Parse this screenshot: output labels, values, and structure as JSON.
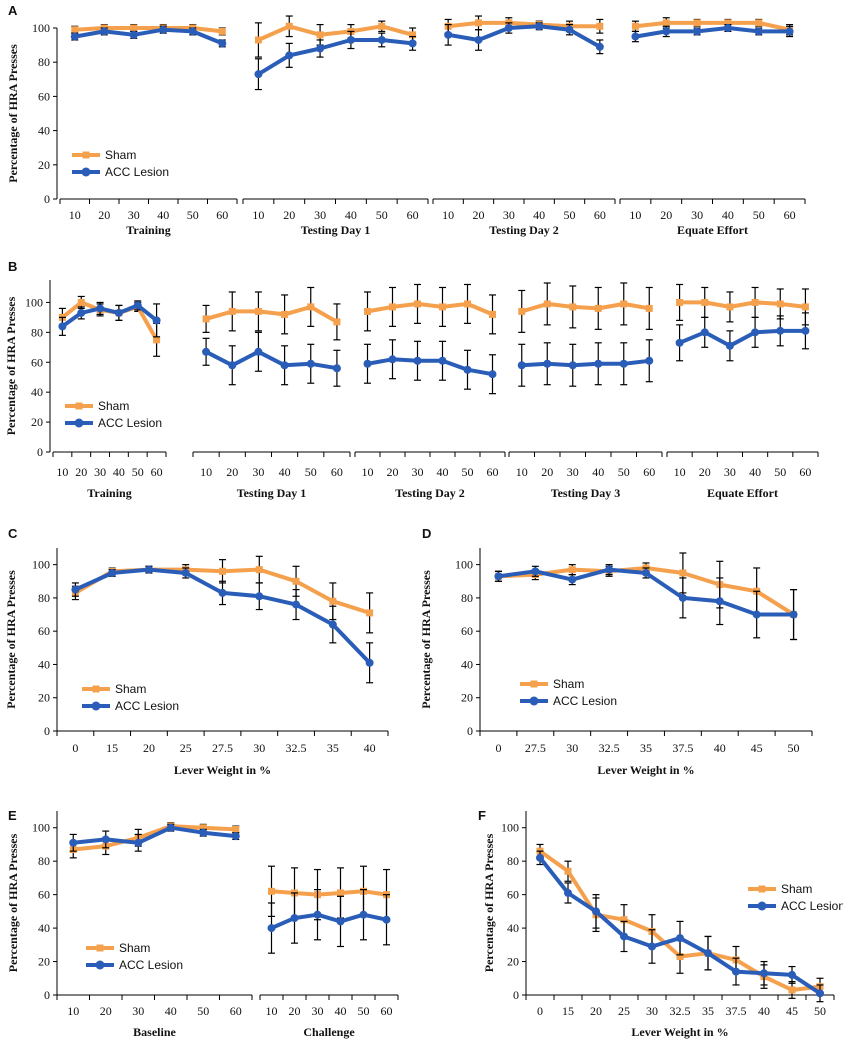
{
  "colors": {
    "sham": "#F5A04C",
    "acc": "#2A5DB7",
    "axis": "#000000",
    "error": "#000000"
  },
  "chart_data": [
    {
      "panel": "A",
      "type": "line",
      "ylabel": "Percentage of HRA Presses",
      "ylim": [
        0,
        100
      ],
      "yticks": [
        "0",
        "20",
        "40",
        "60",
        "80",
        "100"
      ],
      "legend": {
        "position": "lower-left",
        "labels": [
          "Sham",
          "ACC Lesion"
        ]
      },
      "groups": [
        {
          "label": "Training",
          "ticks": [
            "10",
            "20",
            "30",
            "40",
            "50",
            "60"
          ],
          "series": [
            {
              "name": "Sham",
              "values": [
                99,
                100,
                100,
                100,
                100,
                98
              ],
              "errors": [
                2,
                2,
                2,
                2,
                2,
                2
              ]
            },
            {
              "name": "ACC Lesion",
              "values": [
                95,
                98,
                96,
                99,
                98,
                91
              ],
              "errors": [
                2,
                2,
                2,
                2,
                2,
                2
              ]
            }
          ]
        },
        {
          "label": "Testing Day 1",
          "ticks": [
            "10",
            "20",
            "30",
            "40",
            "50",
            "60"
          ],
          "series": [
            {
              "name": "Sham",
              "values": [
                93,
                101,
                96,
                98,
                101,
                96
              ],
              "errors": [
                10,
                6,
                6,
                4,
                3,
                4
              ]
            },
            {
              "name": "ACC Lesion",
              "values": [
                73,
                84,
                88,
                93,
                93,
                91
              ],
              "errors": [
                9,
                7,
                5,
                5,
                4,
                4
              ]
            }
          ]
        },
        {
          "label": "Testing Day 2",
          "ticks": [
            "10",
            "20",
            "30",
            "40",
            "50",
            "60"
          ],
          "series": [
            {
              "name": "Sham",
              "values": [
                101,
                103,
                103,
                102,
                101,
                101
              ],
              "errors": [
                4,
                4,
                3,
                2,
                3,
                4
              ]
            },
            {
              "name": "ACC Lesion",
              "values": [
                96,
                93,
                100,
                101,
                99,
                89
              ],
              "errors": [
                6,
                6,
                3,
                2,
                3,
                4
              ]
            }
          ]
        },
        {
          "label": "Equate Effort",
          "ticks": [
            "10",
            "20",
            "30",
            "40",
            "50",
            "60"
          ],
          "series": [
            {
              "name": "Sham",
              "values": [
                101,
                103,
                103,
                103,
                103,
                99
              ],
              "errors": [
                3,
                3,
                2,
                2,
                2,
                3
              ]
            },
            {
              "name": "ACC Lesion",
              "values": [
                95,
                98,
                98,
                100,
                98,
                98
              ],
              "errors": [
                3,
                3,
                2,
                2,
                2,
                3
              ]
            }
          ]
        }
      ]
    },
    {
      "panel": "B",
      "type": "line",
      "ylabel": "Percentage of HRA Presses",
      "ylim": [
        0,
        115
      ],
      "yticks": [
        "0",
        "20",
        "40",
        "60",
        "80",
        "100"
      ],
      "legend": {
        "position": "lower-left",
        "labels": [
          "Sham",
          "ACC Lesion"
        ]
      },
      "groups": [
        {
          "label": "Training",
          "ticks": [
            "10",
            "20",
            "30",
            "40",
            "50",
            "60"
          ],
          "series": [
            {
              "name": "Sham",
              "values": [
                90,
                100,
                95,
                93,
                97,
                75
              ],
              "errors": [
                6,
                4,
                4,
                5,
                3,
                11
              ]
            },
            {
              "name": "ACC Lesion",
              "values": [
                84,
                93,
                96,
                93,
                98,
                88
              ],
              "errors": [
                6,
                4,
                4,
                5,
                3,
                11
              ]
            }
          ]
        },
        {
          "label": "Testing Day 1",
          "ticks": [
            "10",
            "20",
            "30",
            "40",
            "50",
            "60"
          ],
          "series": [
            {
              "name": "Sham",
              "values": [
                89,
                94,
                94,
                92,
                97,
                87
              ],
              "errors": [
                9,
                13,
                13,
                13,
                13,
                12
              ]
            },
            {
              "name": "ACC Lesion",
              "values": [
                67,
                58,
                67,
                58,
                59,
                56
              ],
              "errors": [
                9,
                13,
                13,
                13,
                13,
                12
              ]
            }
          ]
        },
        {
          "label": "Testing Day 2",
          "ticks": [
            "10",
            "20",
            "30",
            "40",
            "50",
            "60"
          ],
          "series": [
            {
              "name": "Sham",
              "values": [
                94,
                97,
                99,
                97,
                99,
                92
              ],
              "errors": [
                13,
                13,
                13,
                13,
                13,
                13
              ]
            },
            {
              "name": "ACC Lesion",
              "values": [
                59,
                62,
                61,
                61,
                55,
                52
              ],
              "errors": [
                13,
                13,
                13,
                13,
                13,
                13
              ]
            }
          ]
        },
        {
          "label": "Testing Day 3",
          "ticks": [
            "10",
            "20",
            "30",
            "40",
            "50",
            "60"
          ],
          "series": [
            {
              "name": "Sham",
              "values": [
                94,
                99,
                97,
                96,
                99,
                96
              ],
              "errors": [
                14,
                14,
                14,
                14,
                14,
                14
              ]
            },
            {
              "name": "ACC Lesion",
              "values": [
                58,
                59,
                58,
                59,
                59,
                61
              ],
              "errors": [
                14,
                14,
                14,
                14,
                14,
                14
              ]
            }
          ]
        },
        {
          "label": "Equate Effort",
          "ticks": [
            "10",
            "20",
            "30",
            "40",
            "50",
            "60"
          ],
          "series": [
            {
              "name": "Sham",
              "values": [
                100,
                100,
                97,
                100,
                99,
                97
              ],
              "errors": [
                12,
                10,
                10,
                10,
                10,
                12
              ]
            },
            {
              "name": "ACC Lesion",
              "values": [
                73,
                80,
                71,
                80,
                81,
                81
              ],
              "errors": [
                12,
                10,
                10,
                10,
                10,
                12
              ]
            }
          ]
        }
      ]
    },
    {
      "panel": "C",
      "type": "line",
      "ylabel": "Percentage of HRA Presses",
      "xlabel": "Lever Weight in %",
      "ylim": [
        0,
        110
      ],
      "yticks": [
        "0",
        "20",
        "40",
        "60",
        "80",
        "100"
      ],
      "legend": {
        "position": "lower-left",
        "labels": [
          "Sham",
          "ACC Lesion"
        ]
      },
      "categories": [
        "0",
        "15",
        "20",
        "25",
        "27.5",
        "30",
        "32.5",
        "35",
        "40"
      ],
      "series": [
        {
          "name": "Sham",
          "values": [
            83,
            96,
            97,
            97,
            96,
            97,
            90,
            78,
            71
          ],
          "errors": [
            4,
            2,
            2,
            3,
            7,
            8,
            9,
            11,
            12
          ]
        },
        {
          "name": "ACC Lesion",
          "values": [
            85,
            95,
            97,
            95,
            83,
            81,
            76,
            64,
            41
          ],
          "errors": [
            4,
            2,
            2,
            3,
            7,
            8,
            9,
            11,
            12
          ]
        }
      ]
    },
    {
      "panel": "D",
      "type": "line",
      "ylabel": "Percentage of HRA Presses",
      "xlabel": "Lever Weight in %",
      "ylim": [
        0,
        110
      ],
      "yticks": [
        "0",
        "20",
        "40",
        "60",
        "80",
        "100"
      ],
      "legend": {
        "position": "lower-left",
        "labels": [
          "Sham",
          "ACC Lesion"
        ]
      },
      "categories": [
        "0",
        "27.5",
        "30",
        "32.5",
        "35",
        "37.5",
        "40",
        "45",
        "50"
      ],
      "series": [
        {
          "name": "Sham",
          "values": [
            93,
            94,
            97,
            96,
            98,
            95,
            88,
            84,
            70
          ],
          "errors": [
            3,
            3,
            3,
            3,
            3,
            12,
            14,
            14,
            15
          ]
        },
        {
          "name": "ACC Lesion",
          "values": [
            93,
            96,
            91,
            97,
            95,
            80,
            78,
            70,
            70
          ],
          "errors": [
            3,
            3,
            3,
            3,
            3,
            12,
            14,
            14,
            15
          ]
        }
      ]
    },
    {
      "panel": "E",
      "type": "line",
      "ylabel": "Percentage of HRA Presses",
      "ylim": [
        0,
        110
      ],
      "yticks": [
        "0",
        "20",
        "40",
        "60",
        "80",
        "100"
      ],
      "legend": {
        "position": "lower-left",
        "labels": [
          "Sham",
          "ACC Lesion"
        ]
      },
      "groups": [
        {
          "label": "Baseline",
          "ticks": [
            "10",
            "20",
            "30",
            "40",
            "50",
            "60"
          ],
          "series": [
            {
              "name": "Sham",
              "values": [
                87,
                89,
                94,
                101,
                100,
                99
              ],
              "errors": [
                5,
                5,
                5,
                2,
                2,
                2
              ]
            },
            {
              "name": "ACC Lesion",
              "values": [
                91,
                93,
                91,
                100,
                97,
                95
              ],
              "errors": [
                5,
                5,
                5,
                2,
                2,
                2
              ]
            }
          ]
        },
        {
          "label": "Challenge",
          "ticks": [
            "10",
            "20",
            "30",
            "40",
            "50",
            "60"
          ],
          "series": [
            {
              "name": "Sham",
              "values": [
                62,
                61,
                60,
                61,
                62,
                60
              ],
              "errors": [
                15,
                15,
                15,
                15,
                15,
                15
              ]
            },
            {
              "name": "ACC Lesion",
              "values": [
                40,
                46,
                48,
                44,
                48,
                45
              ],
              "errors": [
                15,
                15,
                15,
                15,
                15,
                15
              ]
            }
          ]
        }
      ]
    },
    {
      "panel": "F",
      "type": "line",
      "ylabel": "Percentage of HRA Presses",
      "xlabel": "Lever Weight in %",
      "ylim": [
        0,
        110
      ],
      "yticks": [
        "0",
        "20",
        "40",
        "60",
        "80",
        "100"
      ],
      "legend": {
        "position": "right",
        "labels": [
          "Sham",
          "ACC Lesion"
        ]
      },
      "categories": [
        "0",
        "15",
        "20",
        "25",
        "30",
        "32.5",
        "35",
        "37.5",
        "40",
        "45",
        "50"
      ],
      "series": [
        {
          "name": "Sham",
          "values": [
            86,
            74,
            48,
            45,
            38,
            23,
            25,
            21,
            11,
            3,
            5
          ],
          "errors": [
            4,
            6,
            10,
            9,
            10,
            10,
            10,
            8,
            7,
            5,
            5
          ]
        },
        {
          "name": "ACC Lesion",
          "values": [
            82,
            61,
            50,
            35,
            29,
            34,
            25,
            14,
            13,
            12,
            1
          ],
          "errors": [
            4,
            6,
            10,
            9,
            10,
            10,
            10,
            8,
            7,
            5,
            5
          ]
        }
      ]
    }
  ]
}
